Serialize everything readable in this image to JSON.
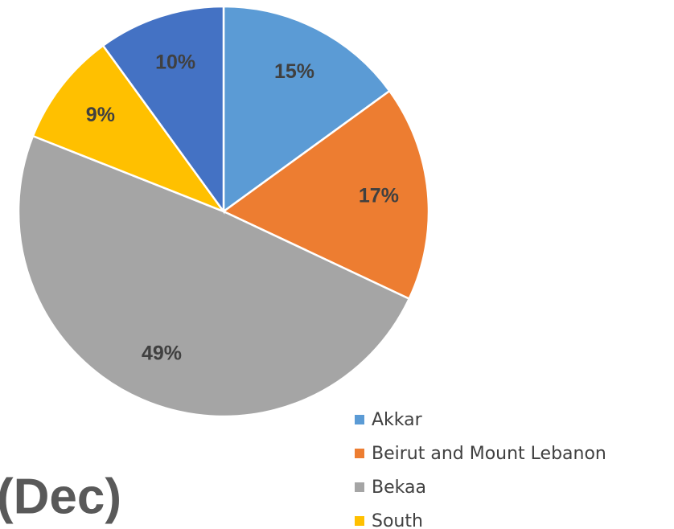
{
  "chart_data": {
    "type": "pie",
    "categories": [
      "Akkar",
      "Beirut and Mount Lebanon",
      "Bekaa",
      "South",
      null
    ],
    "values": [
      15,
      17,
      49,
      9,
      10
    ],
    "value_labels": [
      "15%",
      "17%",
      "49%",
      "9%",
      "10%"
    ],
    "colors": [
      "#5b9bd5",
      "#ed7d31",
      "#a5a5a5",
      "#ffc000",
      "#4472c4"
    ],
    "legend": "bottom-right",
    "annotation": "(Dec)"
  }
}
